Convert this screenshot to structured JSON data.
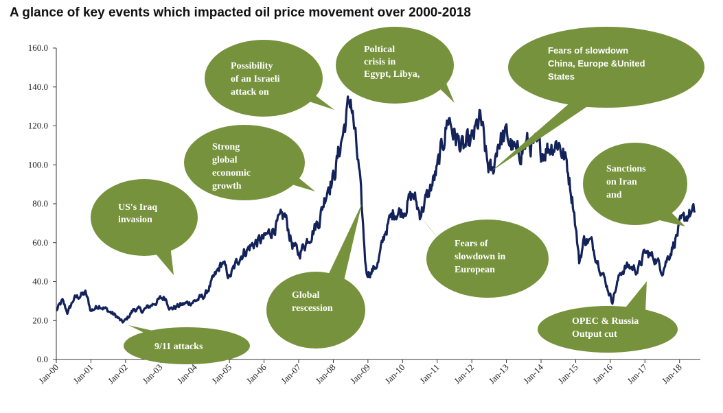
{
  "colors": {
    "line": "#13235a",
    "bubble": "#76923c",
    "axis": "#333333"
  },
  "chart_data": {
    "type": "line",
    "title": "A glance of key events which impacted oil price movement over 2000-2018",
    "xlabel": "",
    "ylabel": "",
    "ylim": [
      0,
      160
    ],
    "yticks": [
      "0.0",
      "20.0",
      "40.0",
      "60.0",
      "80.0",
      "100.0",
      "120.0",
      "140.0",
      "160.0"
    ],
    "xticks": [
      "Jan-00",
      "Jan-01",
      "Jan-02",
      "Jan-03",
      "Jan-04",
      "Jan-05",
      "Jan-06",
      "Jan-07",
      "Jan-08",
      "Jan-09",
      "Jan-10",
      "Jan-11",
      "Jan-12",
      "Jan-13",
      "Jan-14",
      "Jan-15",
      "Jan-16",
      "Jan-17",
      "Jan-18"
    ],
    "grid": false,
    "legend": "none",
    "series": [
      {
        "x": [
          2000.0,
          2000.17,
          2000.33,
          2000.5,
          2000.7,
          2000.85,
          2001.0,
          2001.25,
          2001.5,
          2001.75,
          2001.9,
          2002.0,
          2002.25,
          2002.5,
          2002.75,
          2003.0,
          2003.15,
          2003.3,
          2003.6,
          2004.0,
          2004.3,
          2004.5,
          2004.8,
          2005.0,
          2005.3,
          2005.6,
          2005.75,
          2006.0,
          2006.3,
          2006.6,
          2006.8,
          2007.0,
          2007.3,
          2007.6,
          2007.85,
          2008.0,
          2008.3,
          2008.5,
          2008.75,
          2008.95,
          2009.1,
          2009.3,
          2009.5,
          2009.75,
          2010.0,
          2010.3,
          2010.5,
          2010.75,
          2011.0,
          2011.15,
          2011.33,
          2011.5,
          2011.75,
          2012.0,
          2012.25,
          2012.45,
          2012.6,
          2012.75,
          2013.0,
          2013.3,
          2013.6,
          2013.75,
          2014.0,
          2014.3,
          2014.5,
          2014.75,
          2014.95,
          2015.1,
          2015.25,
          2015.45,
          2015.7,
          2015.9,
          2016.05,
          2016.3,
          2016.5,
          2016.8,
          2017.0,
          2017.3,
          2017.5,
          2017.8,
          2018.0,
          2018.25,
          2018.45
        ],
        "values": [
          25,
          30,
          24,
          31,
          33,
          34,
          25,
          28,
          25,
          22,
          19,
          20,
          26,
          25,
          28,
          31,
          32,
          26,
          28,
          30,
          33,
          40,
          50,
          42,
          53,
          58,
          60,
          62,
          68,
          74,
          60,
          54,
          63,
          72,
          90,
          93,
          118,
          135,
          95,
          45,
          45,
          50,
          66,
          76,
          76,
          85,
          75,
          85,
          97,
          110,
          125,
          115,
          108,
          112,
          124,
          100,
          95,
          112,
          115,
          105,
          111,
          110,
          107,
          110,
          112,
          100,
          78,
          50,
          62,
          60,
          48,
          38,
          30,
          45,
          48,
          46,
          55,
          52,
          46,
          58,
          68,
          75,
          75
        ]
      }
    ],
    "annotations": [
      {
        "id": "iraq",
        "lines": [
          "US's Iraq",
          "invasion"
        ]
      },
      {
        "id": "sept11",
        "lines": [
          "9/11 attacks"
        ]
      },
      {
        "id": "growth",
        "lines": [
          "Strong",
          "global",
          "economic",
          "growth"
        ]
      },
      {
        "id": "israel",
        "lines": [
          "Possibility",
          "of an Israeli",
          "attack on"
        ]
      },
      {
        "id": "recession",
        "lines": [
          "Global",
          "rescession"
        ]
      },
      {
        "id": "political",
        "lines": [
          "Poltical",
          "crisis in",
          "Egypt, Libya,"
        ]
      },
      {
        "id": "europe",
        "lines": [
          "Fears of",
          "slowdown in",
          "European"
        ]
      },
      {
        "id": "china",
        "lines": [
          "Fears of slowdown",
          "China, Europe &United",
          "States"
        ]
      },
      {
        "id": "iran",
        "lines": [
          "Sanctions",
          "on Iran",
          "and"
        ]
      },
      {
        "id": "opec",
        "lines": [
          "OPEC & Russia",
          "Output cut"
        ]
      }
    ]
  }
}
